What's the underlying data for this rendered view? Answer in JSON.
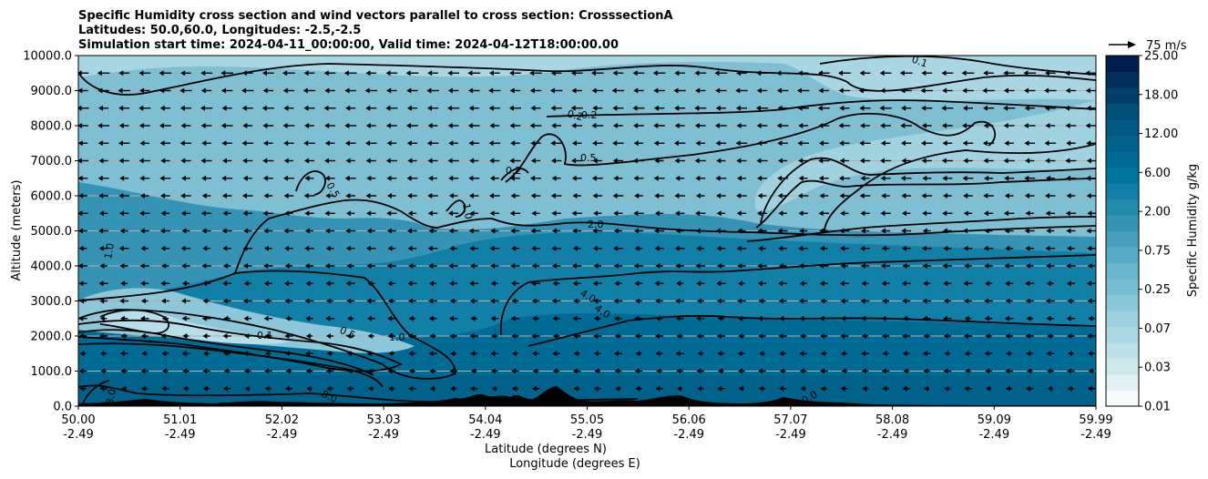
{
  "figure": {
    "title_lines": [
      "Specific Humidity cross section and wind vectors parallel to cross section: CrosssectionA",
      "Latitudes: 50.0,60.0, Longitudes: -2.5,-2.5",
      "Simulation start time: 2024-04-11_00:00:00, Valid time: 2024-04-12T18:00:00.00"
    ]
  },
  "chart_data": {
    "type": "heatmap",
    "title": "Specific Humidity cross section and wind vectors parallel to cross section: CrosssectionA",
    "xlabel": "Latitude (degrees N)",
    "xlabel2": "Longitude (degrees E)",
    "ylabel": "Altitude (meters)",
    "ylim": [
      0,
      10000
    ],
    "grid": "horizontal",
    "x_ticks": [
      {
        "lat": "50.00",
        "lon": "-2.49"
      },
      {
        "lat": "51.01",
        "lon": "-2.49"
      },
      {
        "lat": "52.02",
        "lon": "-2.49"
      },
      {
        "lat": "53.03",
        "lon": "-2.49"
      },
      {
        "lat": "54.04",
        "lon": "-2.49"
      },
      {
        "lat": "55.05",
        "lon": "-2.49"
      },
      {
        "lat": "56.06",
        "lon": "-2.49"
      },
      {
        "lat": "57.07",
        "lon": "-2.49"
      },
      {
        "lat": "58.08",
        "lon": "-2.49"
      },
      {
        "lat": "59.09",
        "lon": "-2.49"
      },
      {
        "lat": "59.99",
        "lon": "-2.49"
      }
    ],
    "y_ticks": [
      "0.0",
      "1000.0",
      "2000.0",
      "3000.0",
      "4000.0",
      "5000.0",
      "6000.0",
      "7000.0",
      "8000.0",
      "9000.0",
      "10000.0"
    ],
    "colorbar": {
      "label": "Specific Humidity g/kg",
      "levels": [
        0.01,
        0.02,
        0.03,
        0.05,
        0.07,
        0.1,
        0.15,
        0.25,
        0.35,
        0.5,
        0.75,
        1.0,
        1.5,
        2.0,
        3.0,
        4.0,
        6.0,
        8.0,
        12.0,
        15.0,
        18.0,
        20.0,
        25.0
      ],
      "tick_labels": [
        "0.01",
        "0.03",
        "0.07",
        "0.25",
        "0.75",
        "2.00",
        "6.00",
        "12.00",
        "18.00",
        "25.00"
      ],
      "colors": [
        "#f7fbfc",
        "#e3f1f4",
        "#cfe8ee",
        "#bde1e9",
        "#acd9e4",
        "#9cd0de",
        "#8ac7d8",
        "#79bdd2",
        "#6ab4cc",
        "#58a9c4",
        "#479fbd",
        "#3594b6",
        "#238aae",
        "#127fa6",
        "#00749d",
        "#006b94",
        "#00628a",
        "#005a83",
        "#00507a",
        "#003f6a",
        "#00305a",
        "#001e4d"
      ]
    },
    "wind_reference": {
      "label": "75 m/s",
      "value": 75
    },
    "wind_direction": "westward (all vectors point toward decreasing latitude)",
    "contour_labels": [
      "0.1",
      "0.2",
      "0.2",
      "0.2",
      "0.5",
      "0.5",
      "0.5",
      "1.0",
      "1.0",
      "1.0",
      "2.0",
      "4.0",
      "4.0",
      "8.0",
      "8.0",
      "0.1",
      "0.0"
    ],
    "colors": {
      "terrain": "#000000",
      "grid": "#b0b0b0",
      "contour": "#000000"
    }
  }
}
